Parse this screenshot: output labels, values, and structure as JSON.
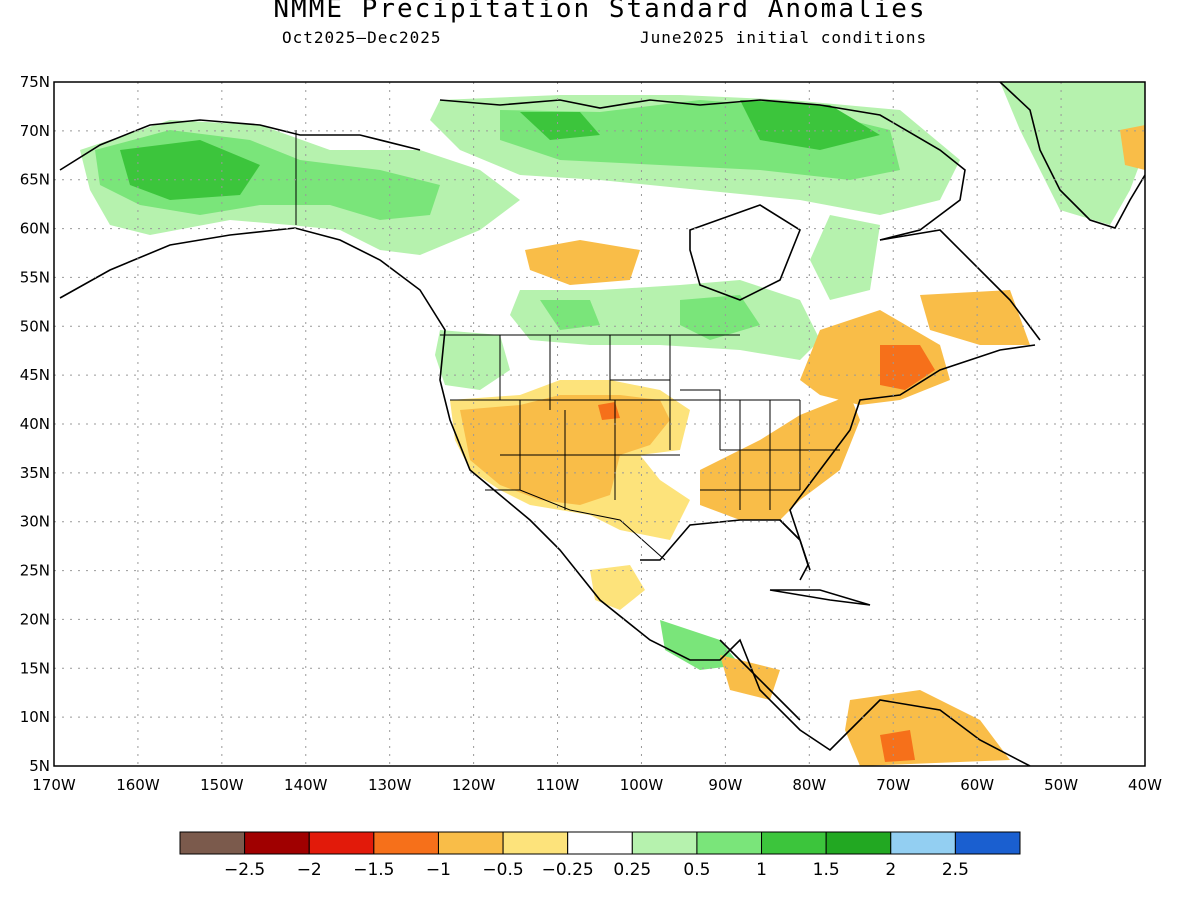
{
  "title": "NMME Precipitation Standard Anomalies",
  "subtitle_left": "Oct2025–Dec2025",
  "subtitle_right": "June2025 initial conditions",
  "lat_labels": [
    "75N",
    "70N",
    "65N",
    "60N",
    "55N",
    "50N",
    "45N",
    "40N",
    "35N",
    "30N",
    "25N",
    "20N",
    "15N",
    "10N",
    "5N"
  ],
  "lon_labels": [
    "170W",
    "160W",
    "150W",
    "140W",
    "130W",
    "120W",
    "110W",
    "100W",
    "90W",
    "80W",
    "70W",
    "60W",
    "50W",
    "40W"
  ],
  "colorbar": {
    "colors": [
      "#7b5a4c",
      "#a00000",
      "#e21a0a",
      "#f6701a",
      "#f9bd48",
      "#fde37b",
      "#ffffff",
      "#b6f2ae",
      "#7ae57a",
      "#3cc53c",
      "#22a822",
      "#93cff2",
      "#1a5fd0"
    ],
    "labels": [
      "−2.5",
      "−2",
      "−1.5",
      "−1",
      "−0.5",
      "−0.25",
      "0.25",
      "0.5",
      "1",
      "1.5",
      "2",
      "2.5"
    ]
  },
  "colors": {
    "dry": "#f9bd48",
    "slight_dry": "#fde37b",
    "wet": "#7ae57a",
    "slight_wet": "#b6f2ae",
    "very_dry": "#f6701a",
    "coast": "#000000"
  }
}
